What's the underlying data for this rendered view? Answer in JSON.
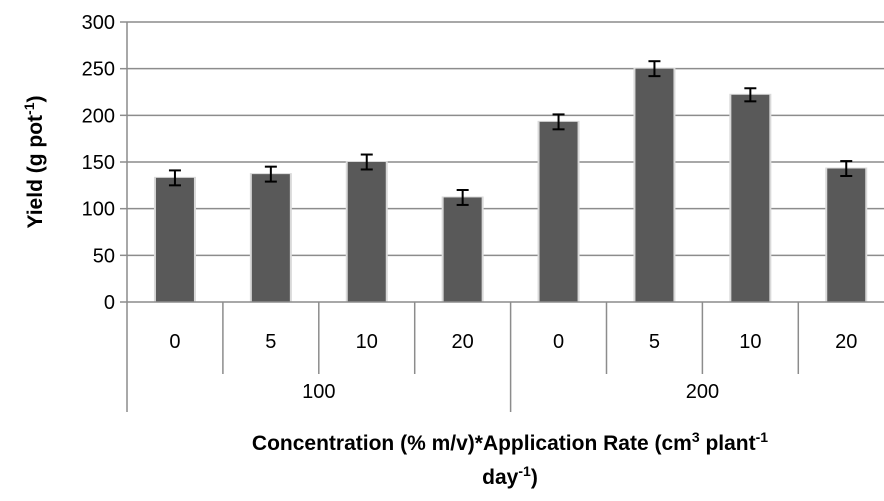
{
  "chart_data": {
    "type": "bar",
    "title": "",
    "ylabel": {
      "main": "Yield (g pot",
      "sup": "-1",
      "end": ")"
    },
    "xlabel": {
      "line1": {
        "main": "Concentration (% m/v)*Application Rate (cm",
        "sup1": "3",
        "mid": " plant",
        "sup2": "-1"
      },
      "line2": {
        "main": "day",
        "sup": "-1",
        "end": ")"
      }
    },
    "ylim": [
      0,
      300
    ],
    "yticks": [
      0,
      50,
      100,
      150,
      200,
      250,
      300
    ],
    "grid": true,
    "groups": [
      {
        "label": "100",
        "categories": [
          "0",
          "5",
          "10",
          "20"
        ]
      },
      {
        "label": "200",
        "categories": [
          "0",
          "5",
          "10",
          "20"
        ]
      }
    ],
    "values": [
      133,
      137,
      150,
      112,
      193,
      250,
      222,
      143
    ],
    "errors": [
      8,
      8,
      8,
      8,
      8,
      8,
      7,
      8
    ],
    "colors": {
      "bar": "#595959",
      "bar_highlight": "#9a9a9a",
      "grid": "#8c8c8c",
      "axis": "#8c8c8c",
      "error": "#000000",
      "text": "#000000"
    }
  }
}
